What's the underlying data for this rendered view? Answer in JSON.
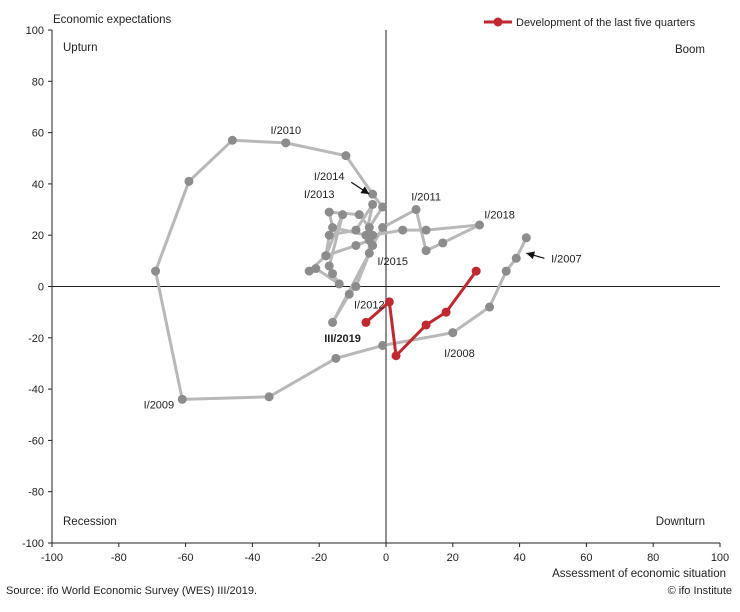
{
  "chart_data": {
    "type": "line",
    "xlabel": "Assessment of economic situation",
    "ylabel": "Economic expectations",
    "xlim": [
      -100,
      100
    ],
    "ylim": [
      -100,
      100
    ],
    "x_ticks": [
      -100,
      -80,
      -60,
      -40,
      -20,
      0,
      20,
      40,
      60,
      80,
      100
    ],
    "y_ticks": [
      100,
      80,
      60,
      40,
      20,
      0,
      -20,
      -40,
      -60,
      -80,
      -100
    ],
    "grid": false,
    "legend_position": "top-right",
    "quadrants": {
      "top_left": "Upturn",
      "top_right": "Boom",
      "bottom_left": "Recession",
      "bottom_right": "Downturn"
    },
    "colors": {
      "history": "#b8b8b8",
      "history_marker": "#8c8c8c",
      "recent": "#c0282f",
      "axis": "#222222"
    },
    "series": [
      {
        "values_note": "",
        "points": [
          [
            42,
            19
          ],
          [
            39,
            11
          ],
          [
            36,
            6
          ],
          [
            31,
            -8
          ],
          [
            20,
            -18
          ],
          [
            -1,
            -23
          ],
          [
            -15,
            -28
          ],
          [
            -35,
            -43
          ],
          [
            -61,
            -44
          ],
          [
            -69,
            6
          ],
          [
            -59,
            41
          ],
          [
            -46,
            57
          ],
          [
            -30,
            56
          ],
          [
            -12,
            51
          ],
          [
            -4,
            36
          ],
          [
            -1,
            31
          ],
          [
            -5,
            23
          ],
          [
            -8,
            28
          ],
          [
            -17,
            29
          ],
          [
            -16,
            23
          ],
          [
            -6,
            20
          ],
          [
            -4,
            32
          ],
          [
            -9,
            22
          ],
          [
            -17,
            20
          ],
          [
            -18,
            12
          ],
          [
            -13,
            28
          ],
          [
            -17,
            8
          ],
          [
            -16,
            5
          ],
          [
            -14,
            1
          ],
          [
            -21,
            7
          ],
          [
            -23,
            6
          ],
          [
            -18,
            12
          ],
          [
            -9,
            16
          ],
          [
            -5,
            18
          ],
          [
            -5,
            13
          ],
          [
            -16,
            -14
          ],
          [
            -11,
            -3
          ],
          [
            -9,
            0
          ],
          [
            -4,
            16
          ],
          [
            -1,
            23
          ],
          [
            9,
            30
          ],
          [
            12,
            14
          ],
          [
            17,
            17
          ],
          [
            28,
            24
          ],
          [
            12,
            22
          ],
          [
            5,
            22
          ],
          [
            -4,
            20
          ]
        ]
      },
      {
        "name": "Development of the last five quarters",
        "points": [
          [
            27,
            6
          ],
          [
            18,
            -10
          ],
          [
            12,
            -15
          ],
          [
            3,
            -27
          ],
          [
            1,
            -6
          ],
          [
            -6,
            -14
          ]
        ]
      }
    ],
    "annotations": [
      {
        "text": "I/2010",
        "x": -30,
        "y": 61
      },
      {
        "text": "I/2014",
        "x": -17,
        "y": 43,
        "arrow_to": [
          -5,
          36
        ]
      },
      {
        "text": "I/2013",
        "x": -20,
        "y": 36
      },
      {
        "text": "I/2011",
        "x": 12,
        "y": 35
      },
      {
        "text": "I/2018",
        "x": 34,
        "y": 28
      },
      {
        "text": "I/2015",
        "x": 2,
        "y": 10
      },
      {
        "text": "I/2007",
        "x": 54,
        "y": 11,
        "arrow_to": [
          42,
          13
        ]
      },
      {
        "text": "I/2012",
        "x": -5,
        "y": -7
      },
      {
        "text": "III/2019",
        "x": -13,
        "y": -20,
        "bold": true
      },
      {
        "text": "I/2008",
        "x": 22,
        "y": -26
      },
      {
        "text": "I/2009",
        "x": -68,
        "y": -46
      }
    ]
  },
  "footer": {
    "source": "Source: ifo World Economic Survey (WES) III/2019.",
    "copyright": "© ifo Institute"
  }
}
